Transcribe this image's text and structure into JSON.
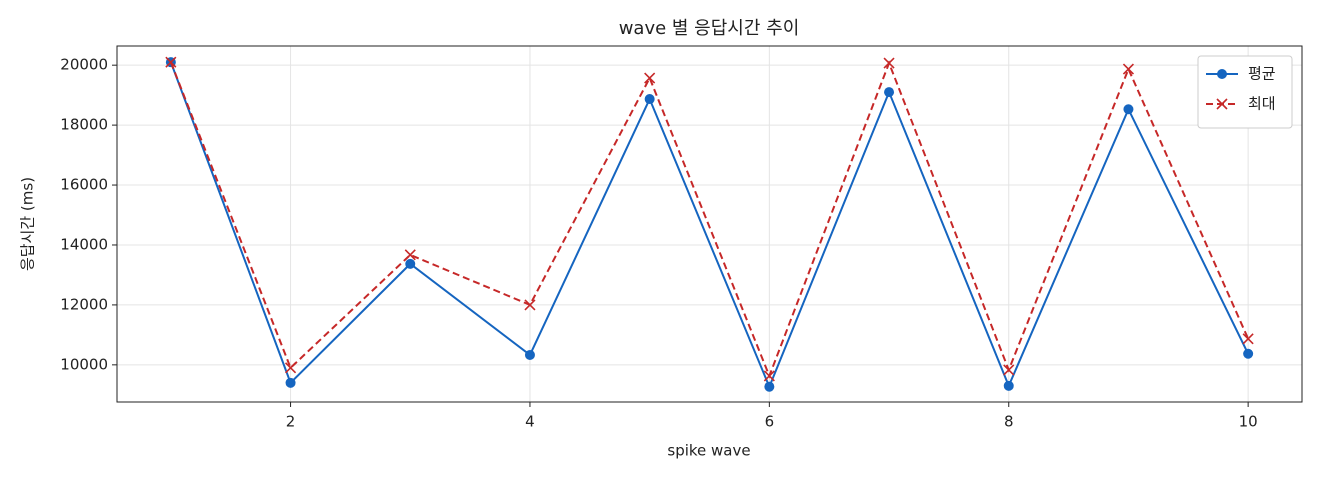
{
  "chart_data": {
    "type": "line",
    "title": "wave 별 응답시간 추이",
    "x_label": "spike wave",
    "y_label": "응답시간 (ms)",
    "x": [
      1,
      2,
      3,
      4,
      5,
      6,
      7,
      8,
      9,
      10
    ],
    "series": [
      {
        "name": "평균",
        "color": "#1565c0",
        "marker": "o",
        "dashed": false,
        "values": [
          20100,
          9400,
          13370,
          10330,
          18870,
          9270,
          19100,
          9300,
          18530,
          10370
        ]
      },
      {
        "name": "최대",
        "color": "#c62828",
        "marker": "x",
        "dashed": true,
        "values": [
          20100,
          9900,
          13670,
          12000,
          19570,
          9630,
          20070,
          9830,
          19870,
          10870
        ]
      }
    ],
    "xlim": [
      0.55,
      10.45
    ],
    "xticks": [
      2,
      4,
      6,
      8,
      10
    ],
    "ylim": [
      8760,
      20640
    ],
    "yticks": [
      10000,
      12000,
      14000,
      16000,
      18000,
      20000
    ],
    "grid": true,
    "legend": "upper right"
  }
}
